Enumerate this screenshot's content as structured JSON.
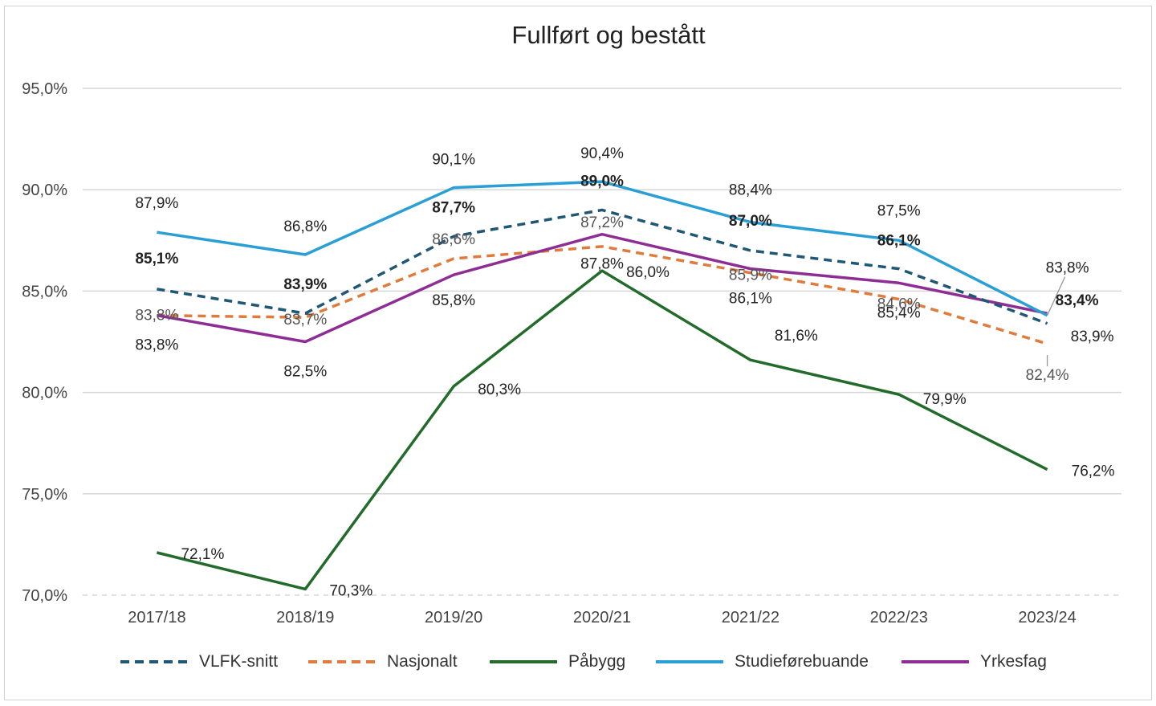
{
  "chart_data": {
    "type": "line",
    "title": "Fullført og bestått",
    "xlabel": "",
    "ylabel": "",
    "categories": [
      "2017/18",
      "2018/19",
      "2019/20",
      "2020/21",
      "2021/22",
      "2022/23",
      "2023/24"
    ],
    "ylim": [
      70,
      95
    ],
    "yticks": [
      "70,0%",
      "75,0%",
      "80,0%",
      "85,0%",
      "90,0%",
      "95,0%"
    ],
    "ytick_values": [
      70,
      75,
      80,
      85,
      90,
      95
    ],
    "grid": true,
    "legend_position": "bottom",
    "series": [
      {
        "name": "VLFK-snitt",
        "color": "#1f5774",
        "dash": true,
        "bold_labels": true,
        "values": [
          85.1,
          83.9,
          87.7,
          89.0,
          87.0,
          86.1,
          83.4
        ],
        "labels": [
          "85,1%",
          "83,9%",
          "87,7%",
          "89,0%",
          "87,0%",
          "86,1%",
          "83,4%"
        ]
      },
      {
        "name": "Nasjonalt",
        "color": "#e07b3c",
        "dash": true,
        "bold_labels": false,
        "values": [
          83.8,
          83.7,
          86.6,
          87.2,
          85.9,
          84.6,
          82.4
        ],
        "labels": [
          "83,8%",
          "83,7%",
          "86,6%",
          "87,2%",
          "85,9%",
          "84,6%",
          "82,4%"
        ]
      },
      {
        "name": "Påbygg",
        "color": "#236b2a",
        "dash": false,
        "bold_labels": false,
        "values": [
          72.1,
          70.3,
          80.3,
          86.0,
          81.6,
          79.9,
          76.2
        ],
        "labels": [
          "72,1%",
          "70,3%",
          "80,3%",
          "86,0%",
          "81,6%",
          "79,9%",
          "76,2%"
        ]
      },
      {
        "name": "Studieførebuande",
        "color": "#2a9fd6",
        "dash": false,
        "bold_labels": false,
        "values": [
          87.9,
          86.8,
          90.1,
          90.4,
          88.4,
          87.5,
          83.8
        ],
        "labels": [
          "87,9%",
          "86,8%",
          "90,1%",
          "90,4%",
          "88,4%",
          "87,5%",
          "83,8%"
        ]
      },
      {
        "name": "Yrkesfag",
        "color": "#8e2e94",
        "dash": false,
        "bold_labels": false,
        "values": [
          83.8,
          82.5,
          85.8,
          87.8,
          86.1,
          85.4,
          83.9
        ],
        "labels": [
          "83,8%",
          "82,5%",
          "85,8%",
          "87,8%",
          "86,1%",
          "85,4%",
          "83,9%"
        ]
      }
    ]
  }
}
